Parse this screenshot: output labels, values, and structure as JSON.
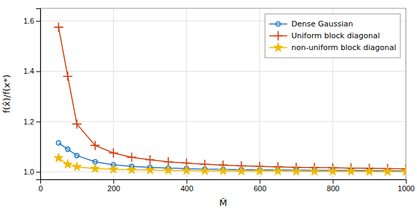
{
  "chart_data": {
    "type": "line",
    "title": "",
    "xlabel": "M̃",
    "ylabel": "f(x̂)/f(x*)",
    "x": [
      50,
      75,
      100,
      150,
      200,
      250,
      300,
      350,
      400,
      450,
      500,
      550,
      600,
      650,
      700,
      750,
      800,
      850,
      900,
      950,
      1000
    ],
    "series": [
      {
        "name": "Dense Gaussian",
        "color": "#2878C8",
        "marker": "circle",
        "values": [
          1.115,
          1.09,
          1.065,
          1.04,
          1.028,
          1.022,
          1.018,
          1.015,
          1.013,
          1.011,
          1.01,
          1.009,
          1.008,
          1.007,
          1.007,
          1.006,
          1.006,
          1.005,
          1.005,
          1.004,
          1.004
        ]
      },
      {
        "name": "Uniform block diagonal",
        "color": "#D04010",
        "marker": "plus",
        "values": [
          1.575,
          1.38,
          1.19,
          1.105,
          1.075,
          1.058,
          1.048,
          1.04,
          1.035,
          1.03,
          1.027,
          1.024,
          1.022,
          1.02,
          1.018,
          1.017,
          1.016,
          1.015,
          1.014,
          1.013,
          1.012
        ]
      },
      {
        "name": "non-uniform block diagonal",
        "color": "#F0B800",
        "marker": "star",
        "values": [
          1.055,
          1.03,
          1.02,
          1.013,
          1.01,
          1.008,
          1.007,
          1.006,
          1.005,
          1.004,
          1.004,
          1.003,
          1.003,
          1.003,
          1.002,
          1.002,
          1.002,
          1.002,
          1.001,
          1.001,
          1.001
        ]
      }
    ],
    "xlim": [
      0,
      1000
    ],
    "xticks": [
      0,
      200,
      400,
      600,
      800,
      1000
    ],
    "ylim": [
      0.97,
      1.65
    ],
    "yticks": [
      {
        "value": 1.0,
        "label": "1.0"
      },
      1.2,
      1.4,
      1.6
    ],
    "grid": true,
    "legend": "upper right"
  }
}
